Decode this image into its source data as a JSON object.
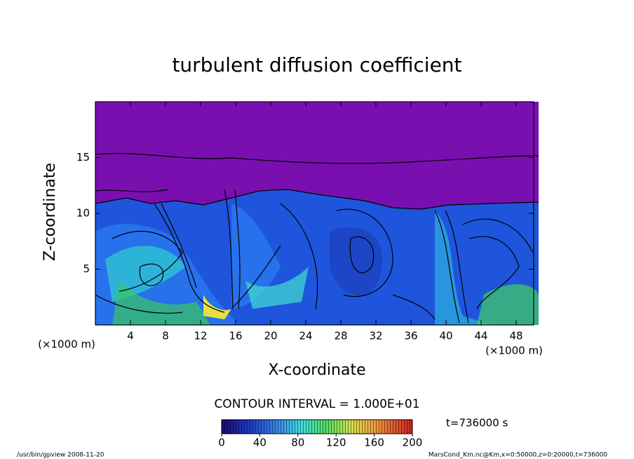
{
  "chart_data": {
    "type": "contour",
    "title": "turbulent diffusion coefficient",
    "xlabel": "X-coordinate",
    "ylabel": "Z-coordinate",
    "xunit": "(×1000 m)",
    "yunit": "(×1000 m)",
    "xlim": [
      0,
      50
    ],
    "xticks": [
      4,
      8,
      12,
      16,
      20,
      24,
      28,
      32,
      36,
      40,
      44,
      48
    ],
    "ylim": [
      0,
      20
    ],
    "yticks": [
      5,
      10,
      15
    ],
    "contour_interval": "CONTOUR INTERVAL = 1.000E+01",
    "time": "t=736000 s",
    "colorbar": {
      "lim": [
        0,
        200
      ],
      "ticks": [
        0,
        40,
        80,
        120,
        160,
        200
      ]
    },
    "footer_left": "/usr/bin/gpview  2008-11-20",
    "footer_right": "MarsCond_Km.nc@Km,x=0:50000,z=0:20000,t=736000"
  }
}
